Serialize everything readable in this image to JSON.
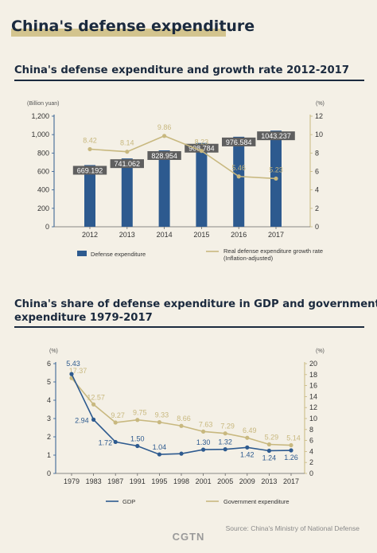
{
  "header": {
    "title": "China's defense expenditure"
  },
  "chart_data": [
    {
      "type": "bar",
      "title": "China's defense expenditure and growth rate 2012-2017",
      "left_axis_unit": "(Billion yuan)",
      "right_axis_unit": "(%)",
      "categories": [
        "2012",
        "2013",
        "2014",
        "2015",
        "2016",
        "2017"
      ],
      "left_ticks": [
        "0",
        "200",
        "400",
        "600",
        "800",
        "1,000",
        "1,200"
      ],
      "right_ticks": [
        "0",
        "2",
        "4",
        "6",
        "8",
        "10",
        "12"
      ],
      "ylim": [
        0,
        1200
      ],
      "y2lim": [
        0,
        12
      ],
      "series": [
        {
          "name": "Defense expenditure",
          "kind": "bar",
          "axis": "left",
          "values": [
            669.192,
            741.062,
            828.954,
            908.784,
            976.584,
            1043.237
          ],
          "labels": [
            "669.192",
            "741.062",
            "828.954",
            "908.784",
            "976.584",
            "1043.237"
          ],
          "color": "#2d5a8f"
        },
        {
          "name": "Real defense expenditure growth rate (Inflation-adjusted)",
          "name_lines": [
            "Real defense expenditure growth rate",
            "(Inflation-adjusted)"
          ],
          "kind": "line",
          "axis": "right",
          "values": [
            8.42,
            8.14,
            9.86,
            8.23,
            5.46,
            5.23
          ],
          "labels": [
            "8.42",
            "8.14",
            "9.86",
            "8.23",
            "5.46",
            "5.23"
          ],
          "color": "#c8b87f"
        }
      ],
      "legend_position": "bottom",
      "grid": false
    },
    {
      "type": "line",
      "title": "China's share of defense expenditure in GDP and government expenditure 1979-2017",
      "title_lines": [
        "China's share of defense expenditure in GDP and government",
        "expenditure 1979-2017"
      ],
      "left_axis_unit": "(%)",
      "right_axis_unit": "(%)",
      "categories": [
        "1979",
        "1983",
        "1987",
        "1991",
        "1995",
        "1998",
        "2001",
        "2005",
        "2009",
        "2013",
        "2017"
      ],
      "left_ticks": [
        "0",
        "1",
        "2",
        "3",
        "4",
        "5",
        "6"
      ],
      "right_ticks": [
        "0",
        "2",
        "4",
        "6",
        "8",
        "10",
        "12",
        "14",
        "16",
        "18",
        "20"
      ],
      "ylim": [
        0,
        6
      ],
      "y2lim": [
        0,
        20
      ],
      "series": [
        {
          "name": "GDP",
          "axis": "left",
          "values": [
            5.43,
            2.94,
            1.72,
            1.5,
            1.04,
            1.08,
            1.3,
            1.32,
            1.42,
            1.24,
            1.26
          ],
          "labels": [
            "5.43",
            "2.94",
            "1.72",
            "1.50",
            "1.04",
            "",
            "1.30",
            "1.32",
            "1.42",
            "1.24",
            "1.26"
          ],
          "color": "#2d5a8f"
        },
        {
          "name": "Government expenditure",
          "axis": "right",
          "values": [
            17.37,
            12.57,
            9.27,
            9.75,
            9.33,
            8.66,
            7.63,
            7.29,
            6.49,
            5.29,
            5.14
          ],
          "labels": [
            "17.37",
            "12.57",
            "9.27",
            "9.75",
            "9.33",
            "8.66",
            "7.63",
            "7.29",
            "6.49",
            "5.29",
            "5.14"
          ],
          "color": "#c8b87f"
        }
      ],
      "legend_position": "bottom",
      "grid": false
    }
  ],
  "footer": {
    "source": "Source: China's Ministry of National Defense",
    "brand": "CGTN"
  }
}
